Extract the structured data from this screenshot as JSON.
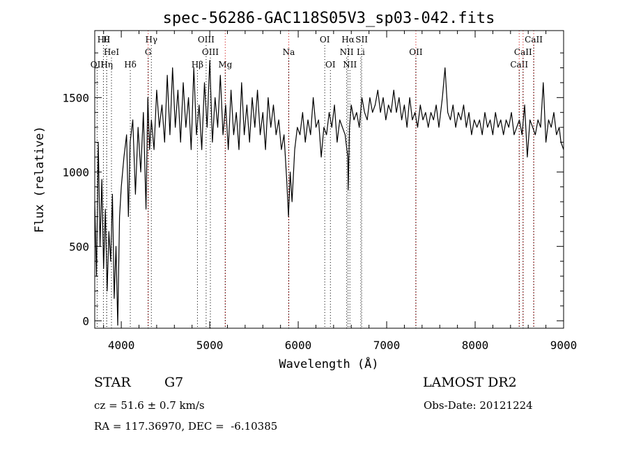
{
  "chart_data": {
    "type": "line",
    "title": "spec-56286-GAC118S05V3_sp03-042.fits",
    "xlabel": "Wavelength (Å)",
    "ylabel": "Flux (relative)",
    "xlim": [
      3700,
      9000
    ],
    "ylim": [
      -50,
      1950
    ],
    "xticks": [
      4000,
      5000,
      6000,
      7000,
      8000,
      9000
    ],
    "yticks": [
      0,
      500,
      1000,
      1500
    ],
    "grid": false,
    "series": [
      {
        "x": [
          3700,
          3720,
          3740,
          3760,
          3780,
          3800,
          3820,
          3840,
          3860,
          3880,
          3900,
          3920,
          3940,
          3960,
          3980,
          4000,
          4030,
          4060,
          4080,
          4100,
          4130,
          4160,
          4190,
          4220,
          4250,
          4280,
          4300,
          4320,
          4340,
          4370,
          4400,
          4430,
          4460,
          4490,
          4520,
          4550,
          4580,
          4610,
          4640,
          4670,
          4700,
          4730,
          4760,
          4790,
          4820,
          4850,
          4880,
          4910,
          4940,
          4970,
          5000,
          5030,
          5060,
          5090,
          5120,
          5150,
          5180,
          5210,
          5240,
          5270,
          5300,
          5330,
          5360,
          5390,
          5420,
          5450,
          5480,
          5510,
          5540,
          5570,
          5600,
          5630,
          5660,
          5690,
          5720,
          5750,
          5780,
          5810,
          5840,
          5870,
          5890,
          5910,
          5930,
          5960,
          5990,
          6020,
          6050,
          6080,
          6110,
          6140,
          6170,
          6200,
          6230,
          6260,
          6290,
          6320,
          6350,
          6380,
          6410,
          6440,
          6470,
          6500,
          6530,
          6560,
          6565,
          6580,
          6600,
          6630,
          6660,
          6690,
          6720,
          6750,
          6780,
          6810,
          6840,
          6870,
          6900,
          6930,
          6960,
          6990,
          7020,
          7050,
          7080,
          7110,
          7140,
          7170,
          7200,
          7230,
          7260,
          7290,
          7320,
          7350,
          7380,
          7410,
          7440,
          7470,
          7500,
          7530,
          7560,
          7590,
          7610,
          7630,
          7660,
          7690,
          7720,
          7750,
          7780,
          7810,
          7840,
          7870,
          7900,
          7930,
          7960,
          7990,
          8020,
          8050,
          8080,
          8110,
          8140,
          8170,
          8200,
          8230,
          8260,
          8290,
          8320,
          8350,
          8380,
          8410,
          8440,
          8470,
          8500,
          8530,
          8560,
          8590,
          8620,
          8650,
          8680,
          8710,
          8740,
          8770,
          8800,
          8830,
          8860,
          8890,
          8920,
          8950,
          8970,
          9000
        ],
        "y": [
          800,
          300,
          1200,
          500,
          950,
          350,
          750,
          200,
          600,
          400,
          850,
          150,
          500,
          -30,
          700,
          900,
          1100,
          1250,
          700,
          1200,
          1350,
          850,
          1300,
          1000,
          1400,
          750,
          1500,
          1150,
          1350,
          1150,
          1550,
          1300,
          1450,
          1200,
          1650,
          1250,
          1700,
          1300,
          1550,
          1200,
          1600,
          1300,
          1500,
          1150,
          1700,
          1250,
          1450,
          1150,
          1600,
          1300,
          1750,
          1200,
          1500,
          1300,
          1650,
          1250,
          1450,
          1150,
          1550,
          1250,
          1400,
          1150,
          1600,
          1250,
          1450,
          1200,
          1500,
          1300,
          1550,
          1250,
          1400,
          1150,
          1500,
          1300,
          1450,
          1250,
          1350,
          1150,
          1250,
          950,
          700,
          1000,
          800,
          1150,
          1300,
          1250,
          1400,
          1200,
          1350,
          1250,
          1500,
          1300,
          1350,
          1100,
          1300,
          1250,
          1400,
          1300,
          1450,
          1200,
          1350,
          1300,
          1250,
          1100,
          880,
          1300,
          1450,
          1350,
          1400,
          1300,
          1500,
          1400,
          1350,
          1500,
          1400,
          1450,
          1550,
          1400,
          1500,
          1350,
          1450,
          1400,
          1550,
          1400,
          1500,
          1350,
          1450,
          1300,
          1500,
          1350,
          1400,
          1300,
          1450,
          1350,
          1400,
          1300,
          1400,
          1350,
          1450,
          1300,
          1400,
          1500,
          1700,
          1400,
          1350,
          1450,
          1300,
          1400,
          1350,
          1450,
          1300,
          1400,
          1250,
          1350,
          1300,
          1350,
          1250,
          1400,
          1300,
          1350,
          1250,
          1400,
          1300,
          1350,
          1250,
          1350,
          1300,
          1400,
          1250,
          1300,
          1350,
          1250,
          1450,
          1100,
          1350,
          1300,
          1250,
          1350,
          1300,
          1600,
          1200,
          1350,
          1300,
          1400,
          1250,
          1300,
          1200,
          1150
        ]
      }
    ],
    "lines": [
      {
        "label": "Hθ",
        "wl": 3798,
        "color": "black",
        "row": 0
      },
      {
        "label": "H",
        "wl": 3835,
        "color": "black",
        "row": 0
      },
      {
        "label": "Hγ",
        "wl": 4340,
        "color": "black",
        "row": 0
      },
      {
        "label": "OIII",
        "wl": 4959,
        "color": "black",
        "row": 0
      },
      {
        "label": "OI",
        "wl": 6300,
        "color": "black",
        "row": 0
      },
      {
        "label": "Hα",
        "wl": 6563,
        "color": "black",
        "row": 0
      },
      {
        "label": "SII",
        "wl": 6717,
        "color": "black",
        "row": 0
      },
      {
        "label": "CaII",
        "wl": 8662,
        "color": "black",
        "row": 0
      },
      {
        "label": "HeI",
        "wl": 3889,
        "color": "black",
        "row": 1
      },
      {
        "label": "G",
        "wl": 4304,
        "color": "black",
        "row": 1
      },
      {
        "label": "OIII",
        "wl": 5007,
        "color": "black",
        "row": 1
      },
      {
        "label": "Na",
        "wl": 5893,
        "color": "black",
        "row": 1
      },
      {
        "label": "NII",
        "wl": 6548,
        "color": "black",
        "row": 1
      },
      {
        "label": "Li",
        "wl": 6708,
        "color": "black",
        "row": 1
      },
      {
        "label": "OII",
        "wl": 7330,
        "color": "black",
        "row": 1
      },
      {
        "label": "CaII",
        "wl": 8542,
        "color": "black",
        "row": 1
      },
      {
        "label": "OII",
        "wl": 3727,
        "color": "black",
        "row": 2
      },
      {
        "label": "Hη",
        "wl": 3835,
        "color": "black",
        "row": 2
      },
      {
        "label": "Hδ",
        "wl": 4102,
        "color": "black",
        "row": 2
      },
      {
        "label": "Hβ",
        "wl": 4861,
        "color": "black",
        "row": 2
      },
      {
        "label": "Mg",
        "wl": 5175,
        "color": "black",
        "row": 2
      },
      {
        "label": "OI",
        "wl": 6364,
        "color": "black",
        "row": 2
      },
      {
        "label": "NII",
        "wl": 6584,
        "color": "black",
        "row": 2
      },
      {
        "label": "CaII",
        "wl": 8498,
        "color": "black",
        "row": 2
      },
      {
        "label": "",
        "wl": 7330,
        "color": "red",
        "row": -1
      },
      {
        "label": "",
        "wl": 8498,
        "color": "red",
        "row": -1
      },
      {
        "label": "",
        "wl": 8542,
        "color": "red",
        "row": -1
      },
      {
        "label": "",
        "wl": 8662,
        "color": "red",
        "row": -1
      },
      {
        "label": "",
        "wl": 4304,
        "color": "red",
        "row": -1
      },
      {
        "label": "",
        "wl": 5175,
        "color": "red",
        "row": -1
      },
      {
        "label": "",
        "wl": 5893,
        "color": "red",
        "row": -1
      }
    ]
  },
  "info": {
    "class": "STAR",
    "subclass": "G7",
    "survey": "LAMOST DR2",
    "cz": "cz = 51.6 ± 0.7 km/s",
    "obsdate": "Obs-Date: 20121224",
    "radec": "RA = 117.36970, DEC =  -6.10385"
  }
}
